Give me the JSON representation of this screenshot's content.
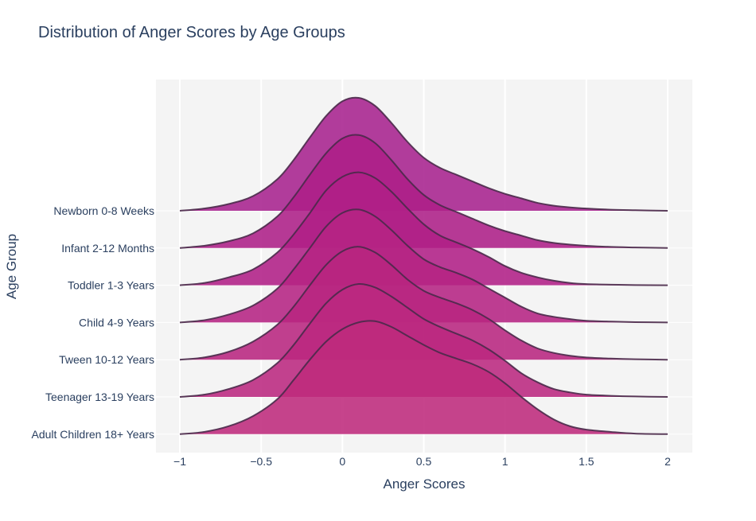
{
  "chart_data": {
    "type": "area",
    "title": "Distribution of Anger Scores by Age Groups",
    "xlabel": "Anger Scores",
    "ylabel": "Age Group",
    "xlim": [
      -1.0,
      2.0
    ],
    "x_ticks": [
      -1,
      -0.5,
      0,
      0.5,
      1,
      1.5,
      2
    ],
    "x_tick_labels": [
      "−1",
      "−0.5",
      "0",
      "0.5",
      "1",
      "1.5",
      "2"
    ],
    "grid": true,
    "plot_bgcolor": "#f4f4f4",
    "line_color": "#4a2a4a",
    "categories": [
      "Newborn 0-8 Weeks",
      "Infant 2-12 Months",
      "Toddler 1-3 Years",
      "Child 4-9 Years",
      "Tween 10-12 Years",
      "Teenager 13-19 Years",
      "Adult Children 18+ Years"
    ],
    "x": [
      -1.0,
      -0.85,
      -0.7,
      -0.55,
      -0.4,
      -0.3,
      -0.2,
      -0.1,
      0.0,
      0.1,
      0.2,
      0.3,
      0.4,
      0.5,
      0.6,
      0.7,
      0.8,
      0.9,
      1.0,
      1.1,
      1.2,
      1.3,
      1.4,
      1.5,
      1.65,
      1.8,
      2.0
    ],
    "series": [
      {
        "name": "Newborn 0-8 Weeks",
        "color": "#a7228e",
        "values": [
          0.0,
          0.02,
          0.06,
          0.13,
          0.28,
          0.45,
          0.65,
          0.84,
          0.97,
          1.0,
          0.93,
          0.78,
          0.61,
          0.47,
          0.38,
          0.32,
          0.26,
          0.2,
          0.15,
          0.11,
          0.07,
          0.045,
          0.03,
          0.02,
          0.01,
          0.005,
          0.0
        ]
      },
      {
        "name": "Infant 2-12 Months",
        "color": "#ad1f88",
        "values": [
          0.0,
          0.02,
          0.06,
          0.13,
          0.28,
          0.45,
          0.65,
          0.84,
          0.97,
          1.0,
          0.93,
          0.78,
          0.61,
          0.47,
          0.38,
          0.32,
          0.26,
          0.2,
          0.15,
          0.11,
          0.07,
          0.045,
          0.03,
          0.02,
          0.01,
          0.005,
          0.0
        ]
      },
      {
        "name": "Toddler 1-3 Years",
        "color": "#b11f86",
        "values": [
          0.0,
          0.02,
          0.07,
          0.14,
          0.29,
          0.45,
          0.64,
          0.84,
          0.96,
          1.0,
          0.95,
          0.83,
          0.68,
          0.54,
          0.44,
          0.38,
          0.32,
          0.25,
          0.17,
          0.11,
          0.07,
          0.04,
          0.02,
          0.01,
          0.005,
          0.002,
          0.0
        ]
      },
      {
        "name": "Child 4-9 Years",
        "color": "#b52383",
        "values": [
          0.0,
          0.02,
          0.07,
          0.15,
          0.3,
          0.47,
          0.66,
          0.85,
          0.97,
          1.0,
          0.94,
          0.82,
          0.68,
          0.56,
          0.49,
          0.44,
          0.38,
          0.3,
          0.22,
          0.14,
          0.08,
          0.05,
          0.03,
          0.015,
          0.008,
          0.003,
          0.0
        ]
      },
      {
        "name": "Tween 10-12 Years",
        "color": "#b82580",
        "values": [
          0.0,
          0.02,
          0.07,
          0.16,
          0.31,
          0.47,
          0.66,
          0.84,
          0.96,
          1.0,
          0.95,
          0.84,
          0.71,
          0.61,
          0.55,
          0.5,
          0.44,
          0.36,
          0.26,
          0.17,
          0.1,
          0.06,
          0.035,
          0.02,
          0.01,
          0.004,
          0.0
        ]
      },
      {
        "name": "Teenager 13-19 Years",
        "color": "#bb287f",
        "values": [
          0.0,
          0.02,
          0.07,
          0.15,
          0.3,
          0.46,
          0.65,
          0.83,
          0.95,
          1.0,
          0.97,
          0.89,
          0.79,
          0.69,
          0.62,
          0.56,
          0.5,
          0.42,
          0.32,
          0.21,
          0.13,
          0.07,
          0.04,
          0.02,
          0.01,
          0.004,
          0.0
        ]
      },
      {
        "name": "Adult Children 18+ Years",
        "color": "#be2a7c",
        "values": [
          0.0,
          0.02,
          0.07,
          0.16,
          0.31,
          0.48,
          0.66,
          0.82,
          0.93,
          0.99,
          1.0,
          0.95,
          0.87,
          0.79,
          0.72,
          0.67,
          0.62,
          0.55,
          0.45,
          0.33,
          0.22,
          0.13,
          0.07,
          0.04,
          0.02,
          0.005,
          0.0
        ]
      }
    ]
  }
}
